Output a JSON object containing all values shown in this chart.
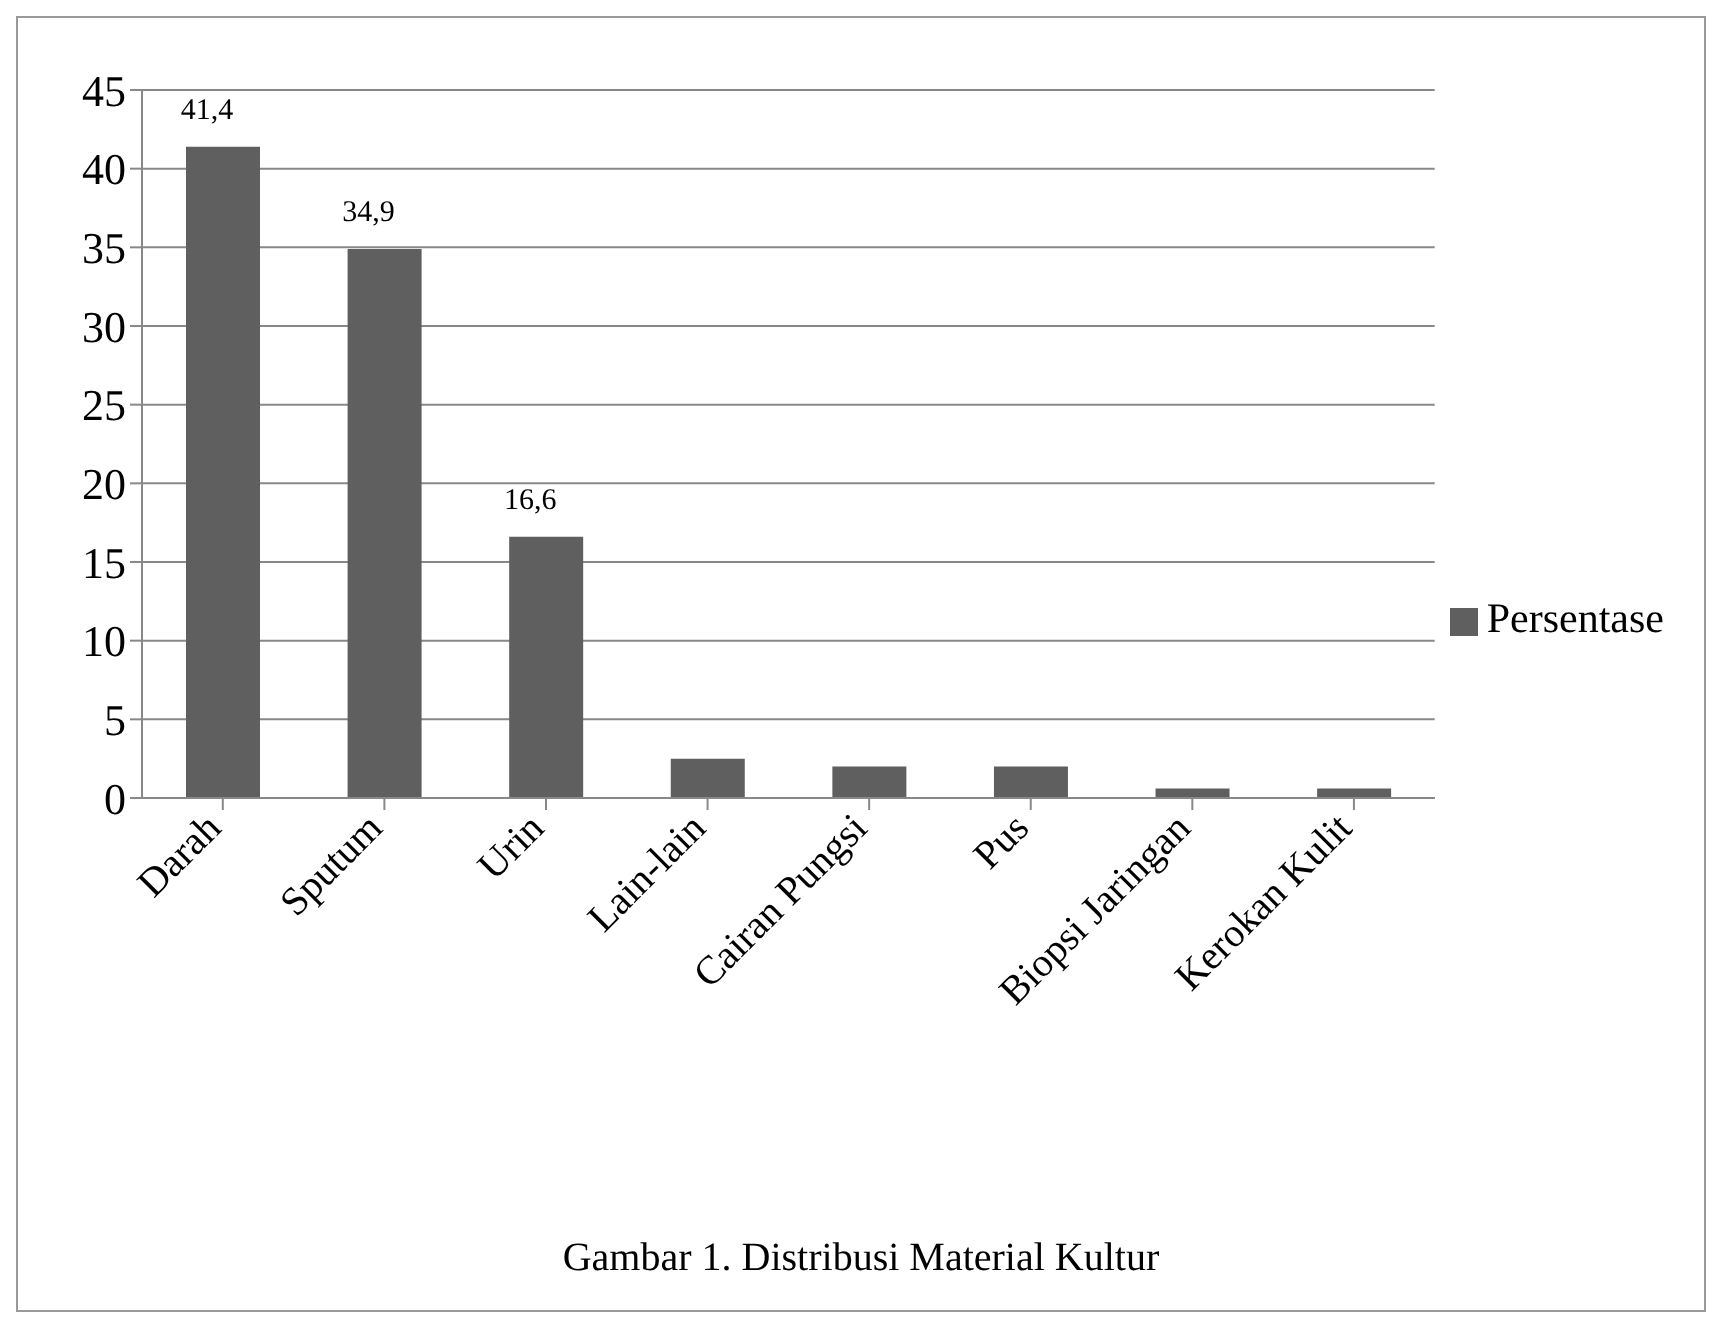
{
  "chart_data": {
    "type": "bar",
    "title": "Gambar 1. Distribusi Material Kultur",
    "categories": [
      "Darah",
      "Sputum",
      "Urin",
      "Lain-lain",
      "Cairan Pungsi",
      "Pus",
      "Biopsi Jaringan",
      "Kerokan Kulit"
    ],
    "series": [
      {
        "name": "Persentase",
        "color": "#5f5f5f",
        "values": [
          41.4,
          34.9,
          16.6,
          2.5,
          2.0,
          2.0,
          0.6,
          0.6
        ],
        "value_labels": [
          "41,4",
          "34,9",
          "16,6",
          null,
          null,
          null,
          null,
          null
        ]
      }
    ],
    "ylim": [
      0,
      45
    ],
    "yticks": [
      0,
      5,
      10,
      15,
      20,
      25,
      30,
      35,
      40,
      45
    ],
    "grid": "y",
    "legend": "right"
  }
}
